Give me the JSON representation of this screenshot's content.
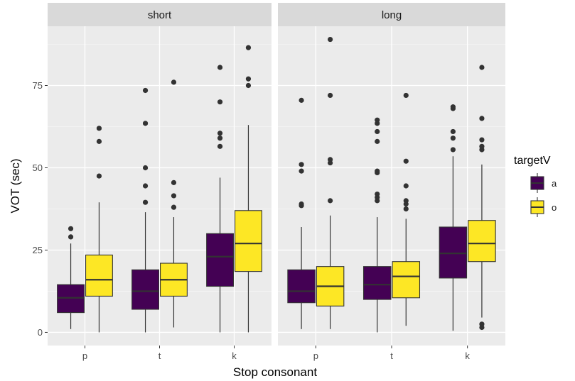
{
  "chart_data": {
    "type": "boxplot",
    "xlabel": "Stop consonant",
    "ylabel": "VOT (sec)",
    "ylim": [
      -4,
      93
    ],
    "yticks": [
      0,
      25,
      50,
      75
    ],
    "categories": [
      "p",
      "t",
      "k"
    ],
    "legend": {
      "title": "targetV",
      "position": "right",
      "entries": [
        {
          "label": "a",
          "color": "#440154"
        },
        {
          "label": "o",
          "color": "#FDE725"
        }
      ]
    },
    "grid": true,
    "panels": [
      {
        "label": "short",
        "boxes": [
          {
            "category": "p",
            "group": "a",
            "min": 1,
            "q1": 6,
            "median": 10.5,
            "q3": 14.5,
            "max": 27,
            "outliers": [
              29,
              31.5
            ]
          },
          {
            "category": "p",
            "group": "o",
            "min": 0,
            "q1": 11,
            "median": 16,
            "q3": 23.5,
            "max": 39.5,
            "outliers": [
              47.5,
              58,
              62
            ]
          },
          {
            "category": "t",
            "group": "a",
            "min": 0,
            "q1": 7,
            "median": 12.5,
            "q3": 19,
            "max": 36.5,
            "outliers": [
              39.5,
              44.5,
              50,
              63.5,
              73.5
            ]
          },
          {
            "category": "t",
            "group": "o",
            "min": 1.5,
            "q1": 11,
            "median": 16,
            "q3": 21,
            "max": 35,
            "outliers": [
              38,
              41.5,
              45.5,
              76
            ]
          },
          {
            "category": "k",
            "group": "a",
            "min": 0,
            "q1": 14,
            "median": 23,
            "q3": 30,
            "max": 47,
            "outliers": [
              56.5,
              59,
              60.5,
              70,
              80.5
            ]
          },
          {
            "category": "k",
            "group": "o",
            "min": 0,
            "q1": 18.5,
            "median": 27,
            "q3": 37,
            "max": 63,
            "outliers": [
              75,
              77,
              86.5
            ]
          }
        ]
      },
      {
        "label": "long",
        "boxes": [
          {
            "category": "p",
            "group": "a",
            "min": 1,
            "q1": 9,
            "median": 12.5,
            "q3": 19,
            "max": 32,
            "outliers": [
              38.5,
              39,
              49,
              51,
              70.5
            ]
          },
          {
            "category": "p",
            "group": "o",
            "min": 1,
            "q1": 8,
            "median": 14,
            "q3": 20,
            "max": 35.5,
            "outliers": [
              40,
              51.5,
              52.5,
              72,
              89
            ]
          },
          {
            "category": "t",
            "group": "a",
            "min": 0,
            "q1": 10,
            "median": 14.5,
            "q3": 20,
            "max": 35,
            "outliers": [
              40,
              41,
              42,
              48.5,
              49,
              58,
              61,
              63.5,
              64.5
            ]
          },
          {
            "category": "t",
            "group": "o",
            "min": 2,
            "q1": 10.5,
            "median": 17,
            "q3": 21.5,
            "max": 34.5,
            "outliers": [
              37.5,
              39,
              40,
              44.5,
              52,
              72
            ]
          },
          {
            "category": "k",
            "group": "a",
            "min": 0.5,
            "q1": 16.5,
            "median": 24,
            "q3": 32,
            "max": 53.5,
            "outliers": [
              55.5,
              59,
              61,
              68,
              68.5
            ]
          },
          {
            "category": "k",
            "group": "o",
            "min": 4.5,
            "q1": 21.5,
            "median": 27,
            "q3": 34,
            "max": 51,
            "outliers": [
              1.5,
              2.5,
              55.5,
              56.5,
              58.5,
              65,
              80.5
            ]
          }
        ]
      }
    ]
  }
}
